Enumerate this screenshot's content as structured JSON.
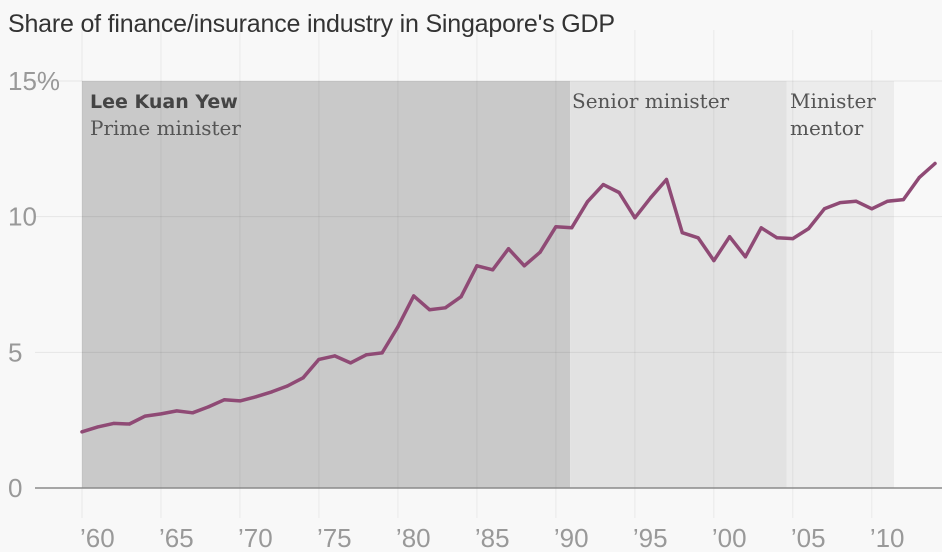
{
  "chart_data": {
    "type": "line",
    "title": "Share of finance/insurance industry in Singapore's GDP",
    "xlabel": "",
    "ylabel": "",
    "xlim": [
      1960,
      2014
    ],
    "ylim": [
      0,
      15
    ],
    "grid": true,
    "y_ticks": [
      {
        "value": 0,
        "label": "0"
      },
      {
        "value": 5,
        "label": "5"
      },
      {
        "value": 10,
        "label": "10"
      },
      {
        "value": 15,
        "label": "15%"
      }
    ],
    "x_ticks": [
      {
        "value": 1960,
        "label": "’60"
      },
      {
        "value": 1965,
        "label": "’65"
      },
      {
        "value": 1970,
        "label": "’70"
      },
      {
        "value": 1975,
        "label": "’75"
      },
      {
        "value": 1980,
        "label": "’80"
      },
      {
        "value": 1985,
        "label": "’85"
      },
      {
        "value": 1990,
        "label": "’90"
      },
      {
        "value": 1995,
        "label": "’95"
      },
      {
        "value": 2000,
        "label": "’00"
      },
      {
        "value": 2005,
        "label": "’05"
      },
      {
        "value": 2010,
        "label": "’10"
      }
    ],
    "series": [
      {
        "name": "Finance/insurance share of GDP (%)",
        "color": "#8f4a75",
        "x": [
          1960,
          1961,
          1962,
          1963,
          1964,
          1965,
          1966,
          1967,
          1968,
          1969,
          1970,
          1971,
          1972,
          1973,
          1974,
          1975,
          1976,
          1977,
          1978,
          1979,
          1980,
          1981,
          1982,
          1983,
          1984,
          1985,
          1986,
          1987,
          1988,
          1989,
          1990,
          1991,
          1992,
          1993,
          1994,
          1995,
          1996,
          1997,
          1998,
          1999,
          2000,
          2001,
          2002,
          2003,
          2004,
          2005,
          2006,
          2007,
          2008,
          2009,
          2010,
          2011,
          2012,
          2013,
          2014
        ],
        "values": [
          2.07,
          2.25,
          2.38,
          2.36,
          2.65,
          2.73,
          2.84,
          2.77,
          2.99,
          3.25,
          3.21,
          3.36,
          3.54,
          3.76,
          4.06,
          4.74,
          4.87,
          4.61,
          4.91,
          4.98,
          5.94,
          7.08,
          6.57,
          6.64,
          7.05,
          8.19,
          8.04,
          8.82,
          8.19,
          8.69,
          9.63,
          9.59,
          10.55,
          11.18,
          10.89,
          9.96,
          10.7,
          11.37,
          9.41,
          9.22,
          8.38,
          9.26,
          8.52,
          9.59,
          9.22,
          9.19,
          9.56,
          10.29,
          10.52,
          10.57,
          10.29,
          10.57,
          10.63,
          11.44,
          11.96
        ]
      }
    ],
    "periods": [
      {
        "start": 1960,
        "end": 1990.9,
        "title": "Lee Kuan Yew",
        "label": "Prime minister",
        "color": "#c9c9c9"
      },
      {
        "start": 1990.9,
        "end": 2004.6,
        "title": "",
        "label": "Senior minister",
        "color": "#e2e2e2"
      },
      {
        "start": 2004.6,
        "end": 2011.4,
        "title": "",
        "label": "Minister mentor",
        "label_lines": [
          "Minister",
          "mentor"
        ],
        "color": "#ececec"
      }
    ]
  }
}
